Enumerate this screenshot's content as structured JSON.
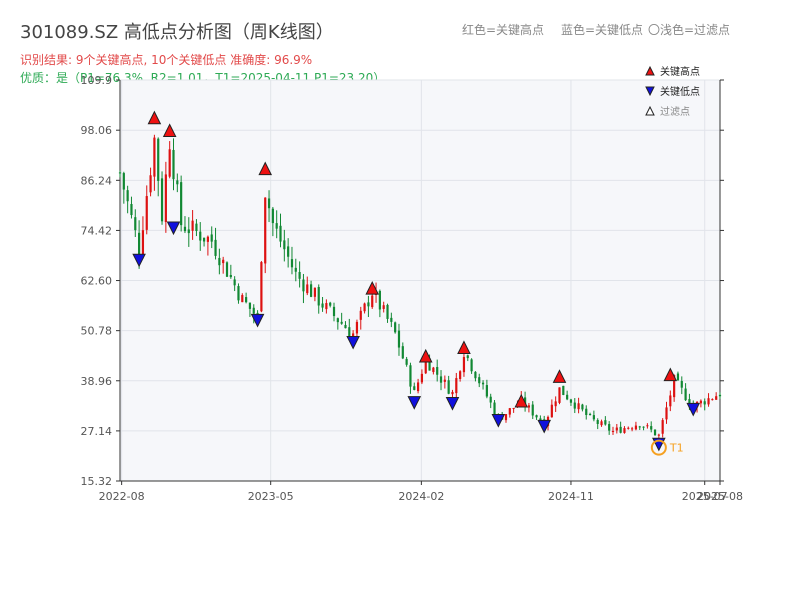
{
  "header": {
    "title": "301089.SZ 高低点分析图（周K线图）",
    "result_line": "识别结果: 9个关键高点, 10个关键低点  准确度: 96.9%",
    "quality_line": "优质：是（P1=76.3%, R2=1.01，T1=2025-04-11 P1=23.20）",
    "hint_red": "红色=关键高点",
    "hint_blue": "蓝色=关键低点",
    "hint_light": "〇浅色=过滤点"
  },
  "colors": {
    "up": "#dd1111",
    "down": "#118833",
    "high_marker": "#ee1111",
    "low_marker": "#1111dd",
    "result_text": "#e24a4a",
    "quality_text": "#2eaa55",
    "t1_ring": "#f5a020",
    "plot_bg": "#f6f7fa"
  },
  "chart_data": {
    "type": "candlestick",
    "ylim": [
      15.32,
      109.9
    ],
    "y_ticks": [
      "109.9",
      "98.06",
      "86.24",
      "74.42",
      "62.60",
      "50.78",
      "38.96",
      "27.14",
      "15.32"
    ],
    "x_range": [
      "2022-07-29",
      "2025-08-01"
    ],
    "x_ticks": [
      {
        "date": "2022-08-01",
        "label": "2022-08"
      },
      {
        "date": "2023-05-01",
        "label": "2023-05"
      },
      {
        "date": "2024-02-01",
        "label": "2024-02"
      },
      {
        "date": "2024-11-01",
        "label": "2024-11"
      },
      {
        "date": "2025-07-04",
        "label": "2025-07"
      },
      {
        "date": "2025-08-01",
        "label": "2025-08"
      }
    ],
    "anchors": [
      {
        "date": "2022-07-29",
        "close": 88
      },
      {
        "date": "2022-09-02",
        "close": 70
      },
      {
        "date": "2022-09-30",
        "close": 96
      },
      {
        "date": "2022-10-14",
        "close": 78
      },
      {
        "date": "2022-10-28",
        "close": 96
      },
      {
        "date": "2022-11-18",
        "close": 76
      },
      {
        "date": "2023-01-13",
        "close": 72
      },
      {
        "date": "2023-03-10",
        "close": 58
      },
      {
        "date": "2023-04-07",
        "close": 54
      },
      {
        "date": "2023-04-21",
        "close": 84
      },
      {
        "date": "2023-05-05",
        "close": 76
      },
      {
        "date": "2023-06-16",
        "close": 64
      },
      {
        "date": "2023-08-11",
        "close": 56
      },
      {
        "date": "2023-09-29",
        "close": 50
      },
      {
        "date": "2023-11-03",
        "close": 60
      },
      {
        "date": "2023-12-15",
        "close": 50
      },
      {
        "date": "2024-01-19",
        "close": 36
      },
      {
        "date": "2024-02-09",
        "close": 44
      },
      {
        "date": "2024-03-29",
        "close": 36
      },
      {
        "date": "2024-04-19",
        "close": 46
      },
      {
        "date": "2024-06-21",
        "close": 30
      },
      {
        "date": "2024-08-02",
        "close": 34
      },
      {
        "date": "2024-09-13",
        "close": 29
      },
      {
        "date": "2024-10-11",
        "close": 37
      },
      {
        "date": "2024-12-06",
        "close": 30
      },
      {
        "date": "2025-01-17",
        "close": 27
      },
      {
        "date": "2025-03-07",
        "close": 29
      },
      {
        "date": "2025-04-11",
        "close": 26
      },
      {
        "date": "2025-05-09",
        "close": 39
      },
      {
        "date": "2025-06-13",
        "close": 33
      },
      {
        "date": "2025-08-01",
        "close": 36
      }
    ],
    "key_highs": [
      {
        "date": "2022-09-30",
        "price": 101.0
      },
      {
        "date": "2022-10-28",
        "price": 98.0
      },
      {
        "date": "2023-04-21",
        "price": 89.0
      },
      {
        "date": "2023-11-03",
        "price": 60.8
      },
      {
        "date": "2024-02-09",
        "price": 44.8
      },
      {
        "date": "2024-04-19",
        "price": 46.8
      },
      {
        "date": "2024-08-02",
        "price": 34.2
      },
      {
        "date": "2024-10-11",
        "price": 40.0
      },
      {
        "date": "2025-05-02",
        "price": 40.4
      }
    ],
    "key_lows": [
      {
        "date": "2022-09-02",
        "price": 67.4
      },
      {
        "date": "2022-11-04",
        "price": 75.0
      },
      {
        "date": "2023-04-07",
        "price": 53.2
      },
      {
        "date": "2023-09-29",
        "price": 48.0
      },
      {
        "date": "2024-01-19",
        "price": 33.8
      },
      {
        "date": "2024-03-29",
        "price": 33.6
      },
      {
        "date": "2024-06-21",
        "price": 29.6
      },
      {
        "date": "2024-09-13",
        "price": 28.2
      },
      {
        "date": "2025-04-11",
        "price": 24.0
      },
      {
        "date": "2025-06-13",
        "price": 32.2
      }
    ],
    "t1": {
      "date": "2025-04-11",
      "price": 23.2,
      "label": "T1"
    },
    "legend": [
      {
        "label": "关键高点",
        "kind": "high"
      },
      {
        "label": "关键低点",
        "kind": "low"
      },
      {
        "label": "过滤点",
        "kind": "filtered"
      }
    ],
    "legend_position": "top-right",
    "grid": true
  }
}
